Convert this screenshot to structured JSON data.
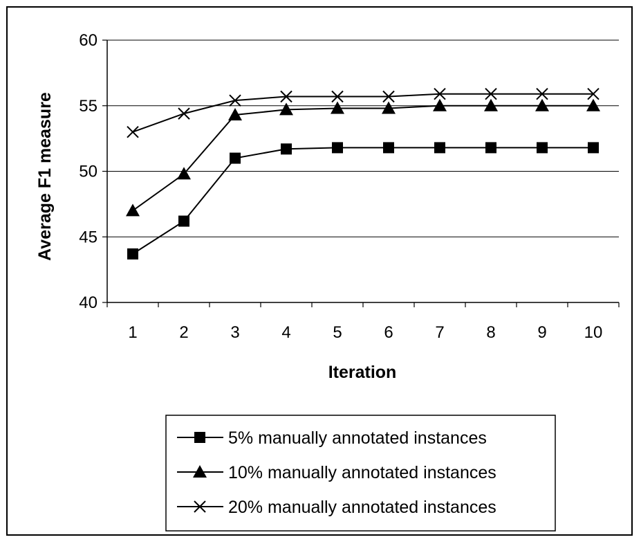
{
  "chart_data": {
    "type": "line",
    "title": "",
    "xlabel": "Iteration",
    "ylabel": "Average F1 measure",
    "categories": [
      "1",
      "2",
      "3",
      "4",
      "5",
      "6",
      "7",
      "8",
      "9",
      "10"
    ],
    "ylim": [
      40,
      60
    ],
    "yticks": [
      "40",
      "45",
      "50",
      "55",
      "60"
    ],
    "grid": "horizontal major gridlines",
    "legend_position": "bottom",
    "series": [
      {
        "name": "5% manually annotated instances",
        "marker": "square",
        "values": [
          43.7,
          46.2,
          51.0,
          51.7,
          51.8,
          51.8,
          51.8,
          51.8,
          51.8,
          51.8
        ]
      },
      {
        "name": "10% manually annotated instances",
        "marker": "triangle",
        "values": [
          47.0,
          49.8,
          54.3,
          54.7,
          54.8,
          54.8,
          55.0,
          55.0,
          55.0,
          55.0
        ]
      },
      {
        "name": "20% manually annotated instances",
        "marker": "x",
        "values": [
          53.0,
          54.4,
          55.4,
          55.7,
          55.7,
          55.7,
          55.9,
          55.9,
          55.9,
          55.9
        ]
      }
    ],
    "colors": {
      "line": "#000000",
      "grid": "#000000"
    }
  }
}
